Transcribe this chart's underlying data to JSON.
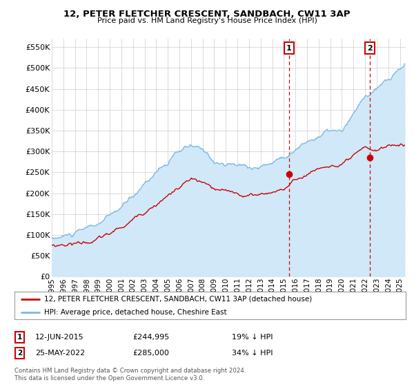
{
  "title": "12, PETER FLETCHER CRESCENT, SANDBACH, CW11 3AP",
  "subtitle": "Price paid vs. HM Land Registry's House Price Index (HPI)",
  "legend_line1": "12, PETER FLETCHER CRESCENT, SANDBACH, CW11 3AP (detached house)",
  "legend_line2": "HPI: Average price, detached house, Cheshire East",
  "annotation1_label": "1",
  "annotation1_date": "12-JUN-2015",
  "annotation1_price": "£244,995",
  "annotation1_hpi": "19% ↓ HPI",
  "annotation2_label": "2",
  "annotation2_date": "25-MAY-2022",
  "annotation2_price": "£285,000",
  "annotation2_hpi": "34% ↓ HPI",
  "footer": "Contains HM Land Registry data © Crown copyright and database right 2024.\nThis data is licensed under the Open Government Licence v3.0.",
  "hpi_color": "#7ab8e8",
  "hpi_fill_color": "#d0e8f8",
  "price_color": "#cc0000",
  "sale1_x": 2015.44,
  "sale1_y": 244995,
  "sale2_x": 2022.4,
  "sale2_y": 285000,
  "ylim": [
    0,
    570000
  ],
  "xlim_start": 1995.0,
  "xlim_end": 2025.5,
  "yticks": [
    0,
    50000,
    100000,
    150000,
    200000,
    250000,
    300000,
    350000,
    400000,
    450000,
    500000,
    550000
  ],
  "ytick_labels": [
    "£0",
    "£50K",
    "£100K",
    "£150K",
    "£200K",
    "£250K",
    "£300K",
    "£350K",
    "£400K",
    "£450K",
    "£500K",
    "£550K"
  ],
  "xtick_years": [
    1995,
    1996,
    1997,
    1998,
    1999,
    2000,
    2001,
    2002,
    2003,
    2004,
    2005,
    2006,
    2007,
    2008,
    2009,
    2010,
    2011,
    2012,
    2013,
    2014,
    2015,
    2016,
    2017,
    2018,
    2019,
    2020,
    2021,
    2022,
    2023,
    2024,
    2025
  ],
  "bg_color": "#ffffff",
  "grid_color": "#cccccc"
}
